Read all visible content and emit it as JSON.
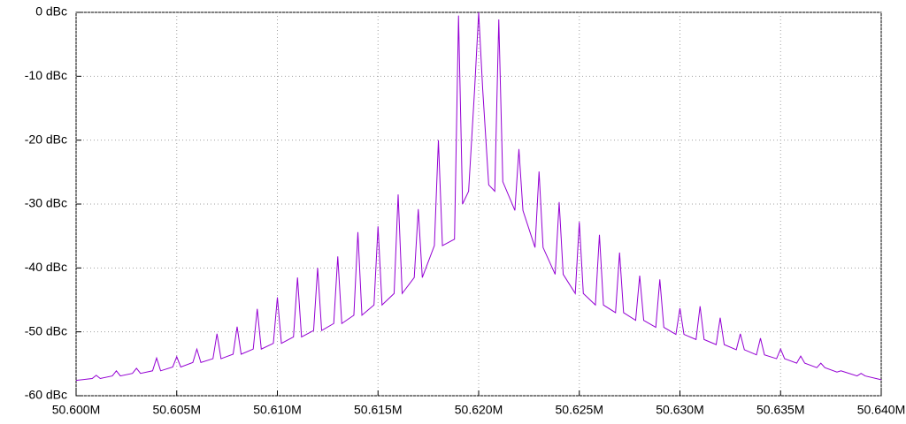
{
  "chart_data": {
    "type": "line",
    "x": [
      50.6,
      50.6008,
      50.601,
      50.6012,
      50.6018,
      50.602,
      50.6022,
      50.6028,
      50.603,
      50.6032,
      50.6038,
      50.604,
      50.6042,
      50.6048,
      50.605,
      50.6052,
      50.6058,
      50.606,
      50.6062,
      50.6068,
      50.607,
      50.6072,
      50.6078,
      50.608,
      50.6082,
      50.6088,
      50.609,
      50.6092,
      50.6098,
      50.61,
      50.6102,
      50.6108,
      50.611,
      50.6112,
      50.6118,
      50.612,
      50.6122,
      50.6128,
      50.613,
      50.6132,
      50.6138,
      50.614,
      50.6142,
      50.6148,
      50.615,
      50.6152,
      50.6158,
      50.616,
      50.6162,
      50.6168,
      50.617,
      50.6172,
      50.6178,
      50.618,
      50.6182,
      50.6188,
      50.619,
      50.6192,
      50.6195,
      50.6198,
      50.62,
      50.6202,
      50.6205,
      50.6208,
      50.621,
      50.6212,
      50.6218,
      50.622,
      50.6222,
      50.6228,
      50.623,
      50.6232,
      50.6238,
      50.624,
      50.6242,
      50.6248,
      50.625,
      50.6252,
      50.6258,
      50.626,
      50.6262,
      50.6268,
      50.627,
      50.6272,
      50.6278,
      50.628,
      50.6282,
      50.6288,
      50.629,
      50.6292,
      50.6298,
      50.63,
      50.6302,
      50.6308,
      50.631,
      50.6312,
      50.6318,
      50.632,
      50.6322,
      50.6328,
      50.633,
      50.6332,
      50.6338,
      50.634,
      50.6342,
      50.6348,
      50.635,
      50.6352,
      50.6358,
      50.636,
      50.6362,
      50.6368,
      50.637,
      50.6372,
      50.6378,
      50.638,
      50.6382,
      50.6388,
      50.639,
      50.6392,
      50.64
    ],
    "series": [
      {
        "color": "#9400d3",
        "values": [
          -57.6,
          -57.3,
          -56.8,
          -57.3,
          -56.9,
          -56.1,
          -56.9,
          -56.5,
          -55.7,
          -56.5,
          -56.1,
          -54.1,
          -56.1,
          -55.5,
          -53.9,
          -55.5,
          -54.8,
          -52.7,
          -54.8,
          -54.2,
          -50.3,
          -54.2,
          -53.5,
          -49.2,
          -53.5,
          -52.7,
          -46.4,
          -52.7,
          -51.8,
          -44.6,
          -51.8,
          -50.8,
          -41.5,
          -50.8,
          -49.8,
          -40,
          -49.8,
          -48.7,
          -38.2,
          -48.7,
          -47.4,
          -34.4,
          -47.4,
          -45.8,
          -33.5,
          -45.8,
          -44,
          -28.5,
          -44,
          -41.5,
          -30.8,
          -41.5,
          -36.5,
          -20,
          -36.5,
          -35.5,
          -0.5,
          -30,
          -28,
          -12,
          0,
          -12,
          -27,
          -28,
          -1.1,
          -26.5,
          -31,
          -21.4,
          -31,
          -36.8,
          -24.9,
          -36.8,
          -41,
          -29.7,
          -41,
          -44,
          -32.8,
          -44,
          -45.8,
          -34.8,
          -45.8,
          -47,
          -37.6,
          -47,
          -48.2,
          -41.2,
          -48.2,
          -49.3,
          -41.8,
          -49.3,
          -50.4,
          -46.3,
          -50.4,
          -51.2,
          -46,
          -51.2,
          -52,
          -47.8,
          -52,
          -52.8,
          -50.3,
          -52.8,
          -53.6,
          -51,
          -53.6,
          -54.2,
          -52.7,
          -54.2,
          -54.9,
          -53.8,
          -54.9,
          -55.6,
          -54.9,
          -55.6,
          -56.3,
          -56.1,
          -56.3,
          -56.9,
          -56.5,
          -56.9,
          -57.5
        ]
      }
    ],
    "xlim": [
      50.6,
      50.64
    ],
    "xticks": [
      {
        "value": 50.6,
        "label": "50.600M"
      },
      {
        "value": 50.605,
        "label": "50.605M"
      },
      {
        "value": 50.61,
        "label": "50.610M"
      },
      {
        "value": 50.615,
        "label": "50.615M"
      },
      {
        "value": 50.62,
        "label": "50.620M"
      },
      {
        "value": 50.625,
        "label": "50.625M"
      },
      {
        "value": 50.63,
        "label": "50.630M"
      },
      {
        "value": 50.635,
        "label": "50.635M"
      },
      {
        "value": 50.64,
        "label": "50.640M"
      }
    ],
    "ylim": [
      -60,
      0
    ],
    "yticks": [
      {
        "value": 0,
        "label": "0 dBc"
      },
      {
        "value": -10,
        "label": "-10 dBc"
      },
      {
        "value": -20,
        "label": "-20 dBc"
      },
      {
        "value": -30,
        "label": "-30 dBc"
      },
      {
        "value": -40,
        "label": "-40 dBc"
      },
      {
        "value": -50,
        "label": "-50 dBc"
      },
      {
        "value": -60,
        "label": "-60 dBc"
      }
    ],
    "grid": true
  }
}
